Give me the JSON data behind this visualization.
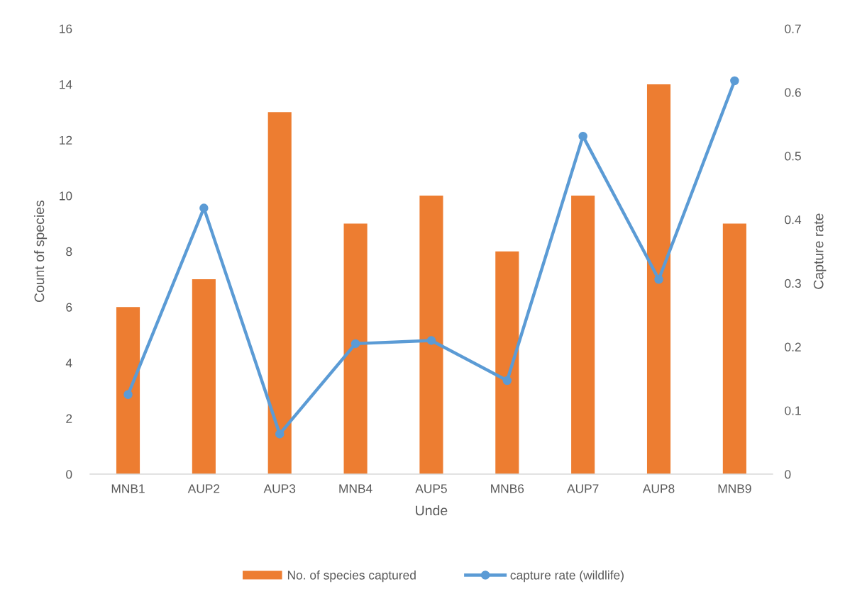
{
  "chart_data": {
    "type": "bar",
    "categories": [
      "MNB1",
      "AUP2",
      "AUP3",
      "MNB4",
      "AUP5",
      "MNB6",
      "AUP7",
      "AUP8",
      "MNB9"
    ],
    "xlabel": "Unde",
    "ylabel": "Count of species",
    "y2label": "Capture rate",
    "ylim": [
      0,
      16
    ],
    "yticks": [
      0,
      2,
      4,
      6,
      8,
      10,
      12,
      14,
      16
    ],
    "y2lim": [
      0,
      0.7
    ],
    "y2ticks": [
      0,
      0.1,
      0.2,
      0.3,
      0.4,
      0.5,
      0.6,
      0.7
    ],
    "grid": false,
    "legend": "bottom",
    "series": [
      {
        "name": "No. of species captured",
        "color": "#ed7d31",
        "values": [
          6,
          7,
          13,
          9,
          10,
          8,
          10,
          14,
          9
        ]
      },
      {
        "name": "capture rate (wildlife)",
        "type": "line",
        "axis": "y2",
        "color": "#5b9bd5",
        "marker": "circle",
        "line_style": "solid",
        "values": [
          0.125,
          0.418,
          0.063,
          0.205,
          0.21,
          0.147,
          0.531,
          0.306,
          0.618
        ]
      }
    ]
  }
}
